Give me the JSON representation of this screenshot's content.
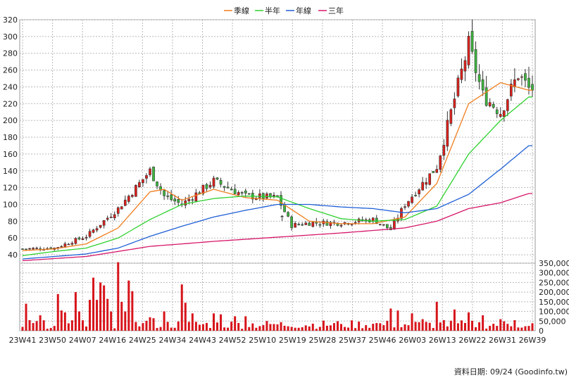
{
  "chart_data": {
    "type": "candlestick",
    "legend": [
      {
        "name": "季線",
        "color": "#f07e1e"
      },
      {
        "name": "半年",
        "color": "#2fd12f"
      },
      {
        "name": "年線",
        "color": "#1f5fd6"
      },
      {
        "name": "三年",
        "color": "#d6176a"
      }
    ],
    "price_axis": {
      "ylim": [
        30,
        320
      ],
      "ticks": [
        40,
        60,
        80,
        100,
        120,
        140,
        160,
        180,
        200,
        220,
        240,
        260,
        280,
        300,
        320
      ]
    },
    "volume_axis": {
      "ylim": [
        0,
        350000
      ],
      "ticks": [
        "0",
        "50,000",
        "100,000",
        "150,000",
        "200,000",
        "250,000",
        "300,000",
        "350,000"
      ]
    },
    "x_ticks": [
      "23W41",
      "23W50",
      "24W07",
      "24W16",
      "24W25",
      "24W34",
      "24W43",
      "24W52",
      "25W10",
      "25W19",
      "25W28",
      "25W37",
      "25W46",
      "26W03",
      "26W13",
      "26W22",
      "26W31",
      "26W39"
    ],
    "grid": true,
    "up_color": "#e0201b",
    "down_color": "#3cb83c",
    "annotation": "↑",
    "source_text": "資料日期: 09/24  (Goodinfo.tw)",
    "price_series": [
      {
        "week": 0,
        "close": 47
      },
      {
        "week": 9,
        "close": 48
      },
      {
        "week": 18,
        "close": 62
      },
      {
        "week": 27,
        "close": 95
      },
      {
        "week": 36,
        "close": 140
      },
      {
        "week": 40,
        "close": 110
      },
      {
        "week": 45,
        "close": 100
      },
      {
        "week": 54,
        "close": 128
      },
      {
        "week": 63,
        "close": 110
      },
      {
        "week": 72,
        "close": 108
      },
      {
        "week": 76,
        "close": 75
      },
      {
        "week": 81,
        "close": 78
      },
      {
        "week": 90,
        "close": 78
      },
      {
        "week": 99,
        "close": 82
      },
      {
        "week": 104,
        "close": 70
      },
      {
        "week": 108,
        "close": 100
      },
      {
        "week": 117,
        "close": 145
      },
      {
        "week": 126,
        "close": 290
      },
      {
        "week": 130,
        "close": 230
      },
      {
        "week": 135,
        "close": 210
      },
      {
        "week": 140,
        "close": 255
      },
      {
        "week": 143,
        "close": 238
      }
    ],
    "ma_quarter": [
      {
        "week": 0,
        "value": 45
      },
      {
        "week": 9,
        "value": 47
      },
      {
        "week": 18,
        "value": 53
      },
      {
        "week": 27,
        "value": 72
      },
      {
        "week": 36,
        "value": 115
      },
      {
        "week": 40,
        "value": 118
      },
      {
        "week": 45,
        "value": 105
      },
      {
        "week": 54,
        "value": 118
      },
      {
        "week": 63,
        "value": 108
      },
      {
        "week": 72,
        "value": 105
      },
      {
        "week": 81,
        "value": 80
      },
      {
        "week": 90,
        "value": 77
      },
      {
        "week": 99,
        "value": 77
      },
      {
        "week": 108,
        "value": 85
      },
      {
        "week": 117,
        "value": 125
      },
      {
        "week": 126,
        "value": 220
      },
      {
        "week": 135,
        "value": 245
      },
      {
        "week": 143,
        "value": 236
      }
    ],
    "ma_half": [
      {
        "week": 0,
        "value": 39
      },
      {
        "week": 9,
        "value": 44
      },
      {
        "week": 18,
        "value": 48
      },
      {
        "week": 27,
        "value": 60
      },
      {
        "week": 36,
        "value": 82
      },
      {
        "week": 45,
        "value": 100
      },
      {
        "week": 54,
        "value": 107
      },
      {
        "week": 63,
        "value": 110
      },
      {
        "week": 72,
        "value": 109
      },
      {
        "week": 81,
        "value": 95
      },
      {
        "week": 90,
        "value": 83
      },
      {
        "week": 99,
        "value": 80
      },
      {
        "week": 108,
        "value": 82
      },
      {
        "week": 117,
        "value": 98
      },
      {
        "week": 126,
        "value": 160
      },
      {
        "week": 135,
        "value": 200
      },
      {
        "week": 143,
        "value": 228
      }
    ],
    "ma_year": [
      {
        "week": 0,
        "value": 35
      },
      {
        "week": 9,
        "value": 38
      },
      {
        "week": 18,
        "value": 41
      },
      {
        "week": 27,
        "value": 48
      },
      {
        "week": 36,
        "value": 62
      },
      {
        "week": 45,
        "value": 74
      },
      {
        "week": 54,
        "value": 85
      },
      {
        "week": 63,
        "value": 93
      },
      {
        "week": 72,
        "value": 100
      },
      {
        "week": 81,
        "value": 100
      },
      {
        "week": 90,
        "value": 97
      },
      {
        "week": 99,
        "value": 95
      },
      {
        "week": 108,
        "value": 90
      },
      {
        "week": 117,
        "value": 95
      },
      {
        "week": 126,
        "value": 112
      },
      {
        "week": 135,
        "value": 142
      },
      {
        "week": 143,
        "value": 170
      }
    ],
    "ma_three_year": [
      {
        "week": 0,
        "value": 33
      },
      {
        "week": 18,
        "value": 38
      },
      {
        "week": 36,
        "value": 50
      },
      {
        "week": 54,
        "value": 56
      },
      {
        "week": 72,
        "value": 61
      },
      {
        "week": 90,
        "value": 66
      },
      {
        "week": 108,
        "value": 72
      },
      {
        "week": 117,
        "value": 80
      },
      {
        "week": 126,
        "value": 95
      },
      {
        "week": 135,
        "value": 102
      },
      {
        "week": 143,
        "value": 113
      }
    ],
    "volume": [
      {
        "week": 0,
        "value": 20000
      },
      {
        "week": 1,
        "value": 140000
      },
      {
        "week": 2,
        "value": 55000
      },
      {
        "week": 3,
        "value": 40000
      },
      {
        "week": 4,
        "value": 50000
      },
      {
        "week": 5,
        "value": 80000
      },
      {
        "week": 9,
        "value": 25000
      },
      {
        "week": 10,
        "value": 190000
      },
      {
        "week": 11,
        "value": 105000
      },
      {
        "week": 12,
        "value": 95000
      },
      {
        "week": 15,
        "value": 200000
      },
      {
        "week": 16,
        "value": 100000
      },
      {
        "week": 19,
        "value": 160000
      },
      {
        "week": 20,
        "value": 275000
      },
      {
        "week": 21,
        "value": 160000
      },
      {
        "week": 22,
        "value": 250000
      },
      {
        "week": 23,
        "value": 235000
      },
      {
        "week": 24,
        "value": 165000
      },
      {
        "week": 25,
        "value": 100000
      },
      {
        "week": 27,
        "value": 355000
      },
      {
        "week": 28,
        "value": 150000
      },
      {
        "week": 29,
        "value": 100000
      },
      {
        "week": 30,
        "value": 260000
      },
      {
        "week": 31,
        "value": 205000
      },
      {
        "week": 36,
        "value": 70000
      },
      {
        "week": 37,
        "value": 65000
      },
      {
        "week": 40,
        "value": 100000
      },
      {
        "week": 45,
        "value": 240000
      },
      {
        "week": 46,
        "value": 145000
      },
      {
        "week": 48,
        "value": 90000
      },
      {
        "week": 54,
        "value": 90000
      },
      {
        "week": 56,
        "value": 85000
      },
      {
        "week": 60,
        "value": 75000
      },
      {
        "week": 63,
        "value": 75000
      },
      {
        "week": 70,
        "value": 35000
      },
      {
        "week": 76,
        "value": 20000
      },
      {
        "week": 90,
        "value": 35000
      },
      {
        "week": 100,
        "value": 40000
      },
      {
        "week": 104,
        "value": 115000
      },
      {
        "week": 106,
        "value": 105000
      },
      {
        "week": 110,
        "value": 90000
      },
      {
        "week": 113,
        "value": 60000
      },
      {
        "week": 117,
        "value": 150000
      },
      {
        "week": 119,
        "value": 55000
      },
      {
        "week": 122,
        "value": 110000
      },
      {
        "week": 126,
        "value": 95000
      },
      {
        "week": 130,
        "value": 80000
      },
      {
        "week": 135,
        "value": 60000
      },
      {
        "week": 139,
        "value": 55000
      },
      {
        "week": 143,
        "value": 25000
      }
    ]
  }
}
